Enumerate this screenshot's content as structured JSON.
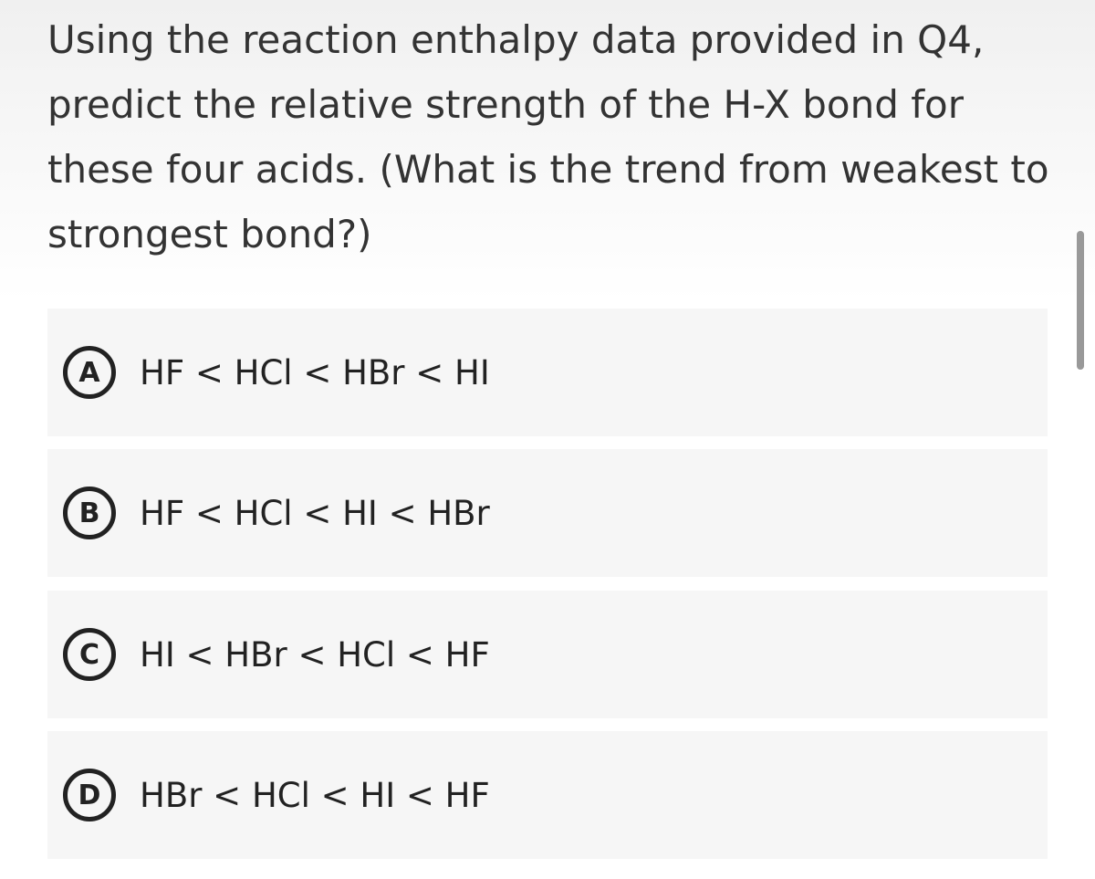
{
  "question": "Using the reaction enthalpy data provided in Q4, predict the relative strength of the H-X bond for these four acids. (What is the trend from weakest to strongest bond?)",
  "options": [
    {
      "letter": "A",
      "text": "HF < HCl < HBr < HI"
    },
    {
      "letter": "B",
      "text": "HF < HCl < HI < HBr"
    },
    {
      "letter": "C",
      "text": "HI < HBr < HCl < HF"
    },
    {
      "letter": "D",
      "text": "HBr < HCl < HI < HF"
    }
  ]
}
